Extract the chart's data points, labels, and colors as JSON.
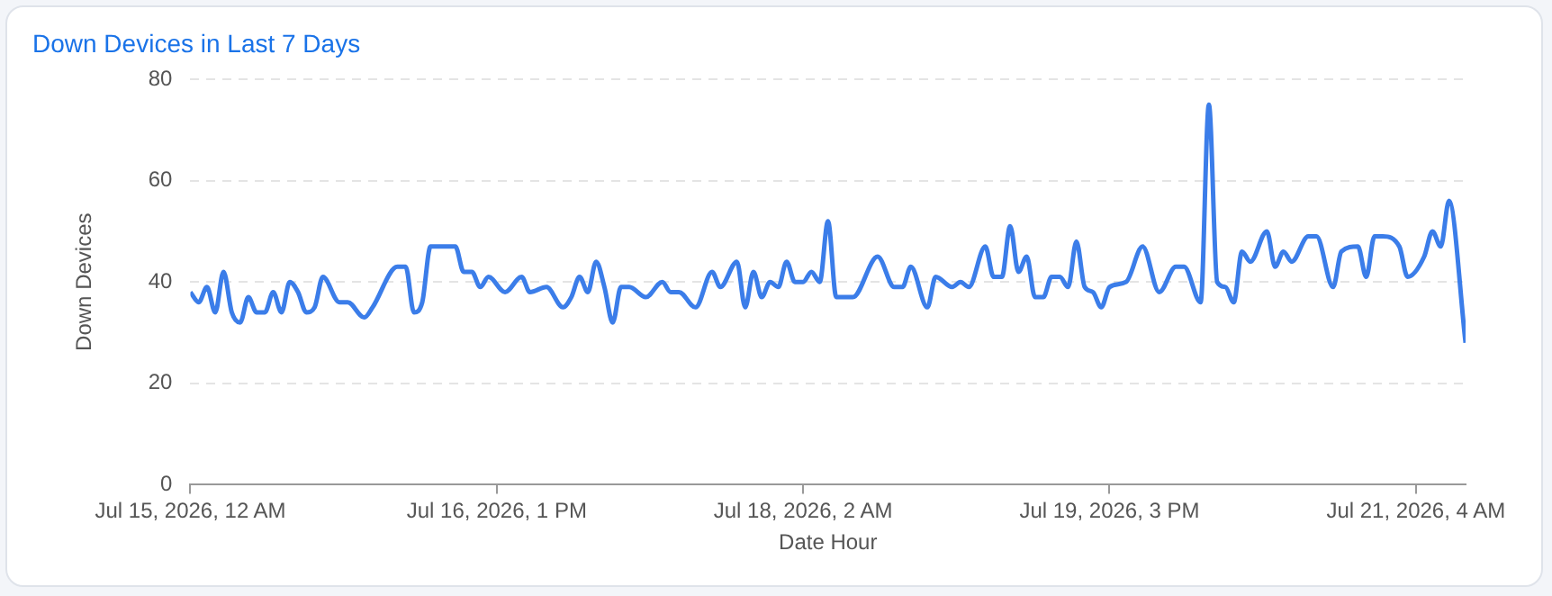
{
  "chart_data": {
    "type": "line",
    "title": "Down Devices in Last 7 Days",
    "xlabel": "Date Hour",
    "ylabel": "Down Devices",
    "x": [
      "2026-07-15T00:00",
      "2026-07-15T01:00",
      "2026-07-15T02:00",
      "2026-07-15T03:00",
      "2026-07-15T04:00",
      "2026-07-15T05:00",
      "2026-07-15T06:00",
      "2026-07-15T07:00",
      "2026-07-15T08:00",
      "2026-07-15T09:00",
      "2026-07-15T10:00",
      "2026-07-15T11:00",
      "2026-07-15T12:00",
      "2026-07-15T13:00",
      "2026-07-15T14:00",
      "2026-07-15T15:00",
      "2026-07-15T16:00",
      "2026-07-15T18:00",
      "2026-07-15T19:00",
      "2026-07-15T21:00",
      "2026-07-15T22:00",
      "2026-07-16T01:00",
      "2026-07-16T02:00",
      "2026-07-16T03:00",
      "2026-07-16T04:00",
      "2026-07-16T05:00",
      "2026-07-16T06:00",
      "2026-07-16T08:00",
      "2026-07-16T09:00",
      "2026-07-16T10:00",
      "2026-07-16T11:00",
      "2026-07-16T12:00",
      "2026-07-16T14:00",
      "2026-07-16T16:00",
      "2026-07-16T17:00",
      "2026-07-16T19:00",
      "2026-07-16T21:00",
      "2026-07-16T22:00",
      "2026-07-16T23:00",
      "2026-07-17T00:00",
      "2026-07-17T01:00",
      "2026-07-17T02:00",
      "2026-07-17T03:00",
      "2026-07-17T04:00",
      "2026-07-17T05:00",
      "2026-07-17T07:00",
      "2026-07-17T09:00",
      "2026-07-17T10:00",
      "2026-07-17T11:00",
      "2026-07-17T13:00",
      "2026-07-17T15:00",
      "2026-07-17T16:00",
      "2026-07-17T18:00",
      "2026-07-17T19:00",
      "2026-07-17T20:00",
      "2026-07-17T21:00",
      "2026-07-17T22:00",
      "2026-07-17T23:00",
      "2026-07-18T00:00",
      "2026-07-18T01:00",
      "2026-07-18T02:00",
      "2026-07-18T03:00",
      "2026-07-18T04:00",
      "2026-07-18T05:00",
      "2026-07-18T06:00",
      "2026-07-18T08:00",
      "2026-07-18T11:00",
      "2026-07-18T13:00",
      "2026-07-18T14:00",
      "2026-07-18T15:00",
      "2026-07-18T17:00",
      "2026-07-18T18:00",
      "2026-07-18T20:00",
      "2026-07-18T21:00",
      "2026-07-18T22:00",
      "2026-07-19T00:00",
      "2026-07-19T01:00",
      "2026-07-19T02:00",
      "2026-07-19T03:00",
      "2026-07-19T04:00",
      "2026-07-19T05:00",
      "2026-07-19T06:00",
      "2026-07-19T07:00",
      "2026-07-19T08:00",
      "2026-07-19T09:00",
      "2026-07-19T10:00",
      "2026-07-19T11:00",
      "2026-07-19T12:00",
      "2026-07-19T13:00",
      "2026-07-19T14:00",
      "2026-07-19T15:00",
      "2026-07-19T17:00",
      "2026-07-19T19:00",
      "2026-07-19T21:00",
      "2026-07-19T23:00",
      "2026-07-20T00:00",
      "2026-07-20T02:00",
      "2026-07-20T03:00",
      "2026-07-20T04:00",
      "2026-07-20T05:00",
      "2026-07-20T06:00",
      "2026-07-20T07:00",
      "2026-07-20T08:00",
      "2026-07-20T10:00",
      "2026-07-20T11:00",
      "2026-07-20T12:00",
      "2026-07-20T13:00",
      "2026-07-20T15:00",
      "2026-07-20T16:00",
      "2026-07-20T18:00",
      "2026-07-20T19:00",
      "2026-07-20T21:00",
      "2026-07-20T22:00",
      "2026-07-20T23:00",
      "2026-07-21T00:00",
      "2026-07-21T02:00",
      "2026-07-21T03:00",
      "2026-07-21T05:00",
      "2026-07-21T06:00",
      "2026-07-21T07:00",
      "2026-07-21T08:00",
      "2026-07-21T10:00"
    ],
    "series": [
      {
        "color": "#3b7de9",
        "values": [
          38,
          36,
          39,
          34,
          42,
          34,
          32,
          37,
          34,
          34,
          38,
          34,
          40,
          38,
          34,
          35,
          41,
          36,
          36,
          33,
          35,
          43,
          43,
          34,
          36,
          47,
          47,
          47,
          42,
          42,
          39,
          41,
          38,
          41,
          38,
          39,
          35,
          37,
          41,
          38,
          44,
          39,
          32,
          39,
          39,
          37,
          40,
          38,
          38,
          35,
          42,
          39,
          44,
          35,
          42,
          37,
          40,
          39,
          44,
          40,
          40,
          42,
          40,
          52,
          37,
          37,
          45,
          39,
          39,
          43,
          35,
          41,
          39,
          40,
          39,
          47,
          41,
          41,
          51,
          42,
          45,
          37,
          37,
          41,
          41,
          39,
          48,
          39,
          38,
          35,
          39,
          40,
          47,
          38,
          43,
          43,
          36,
          75,
          40,
          39,
          36,
          46,
          44,
          50,
          43,
          46,
          44,
          49,
          49,
          39,
          46,
          47,
          41,
          49,
          49,
          47,
          41,
          45,
          50,
          47,
          56,
          28
        ]
      }
    ],
    "xlim": [
      "2026-07-15T00:00",
      "2026-07-21T10:00"
    ],
    "xticks": [
      {
        "value": "2026-07-15T00:00",
        "label": "Jul 15, 2026, 12 AM"
      },
      {
        "value": "2026-07-16T13:00",
        "label": "Jul 16, 2026, 1 PM"
      },
      {
        "value": "2026-07-18T02:00",
        "label": "Jul 18, 2026, 2 AM"
      },
      {
        "value": "2026-07-19T15:00",
        "label": "Jul 19, 2026, 3 PM"
      },
      {
        "value": "2026-07-21T04:00",
        "label": "Jul 21, 2026, 4 AM"
      }
    ],
    "ylim": [
      0,
      80
    ],
    "yticks": [
      0,
      20,
      40,
      60,
      80
    ],
    "grid": "y",
    "marker": "none",
    "line_style": "solid"
  }
}
